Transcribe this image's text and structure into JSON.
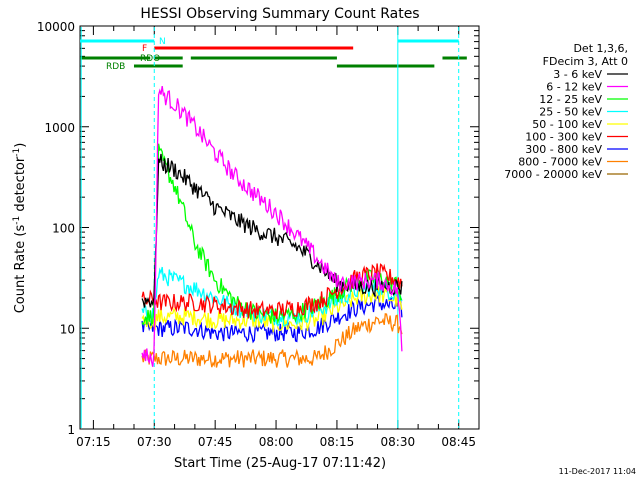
{
  "chart_data": {
    "type": "line",
    "title": "HESSI Observing Summary Count Rates",
    "xlabel": "Start Time (25-Aug-17 07:11:42)",
    "ylabel_main": "Count Rate (s",
    "ylabel_sup": "-1",
    "ylabel_mid": " detector",
    "ylabel_end": ")",
    "xlim": [
      "07:11:42",
      "08:50:00"
    ],
    "ylim": [
      1,
      10000
    ],
    "yscale": "log",
    "x_tick_labels": [
      "07:15",
      "07:30",
      "07:45",
      "08:00",
      "08:15",
      "08:30",
      "08:45"
    ],
    "y_tick_labels": [
      "1",
      "10",
      "100",
      "1000",
      "10000"
    ],
    "legend_header": [
      "Det 1,3,6,",
      "FDecim 3, Att 0"
    ],
    "legend_position": "right",
    "footer_date": "11-Dec-2017 11:04",
    "series": [
      {
        "name": "3 - 6 keV",
        "color": "#000000",
        "x": [
          "07:27",
          "07:29",
          "07:30",
          "07:31",
          "07:35",
          "07:40",
          "07:45",
          "07:50",
          "07:55",
          "08:00",
          "08:05",
          "08:10",
          "08:15",
          "08:20",
          "08:25",
          "08:30",
          "08:31"
        ],
        "values": [
          19,
          19,
          19,
          450,
          380,
          250,
          160,
          120,
          95,
          80,
          65,
          45,
          28,
          26,
          26,
          26,
          25
        ]
      },
      {
        "name": "6 - 12 keV",
        "color": "#ff00ff",
        "x": [
          "07:27",
          "07:29",
          "07:30",
          "07:31",
          "07:35",
          "07:40",
          "07:45",
          "07:50",
          "07:55",
          "08:00",
          "08:05",
          "08:10",
          "08:15",
          "08:20",
          "08:25",
          "08:30",
          "08:31"
        ],
        "values": [
          6,
          5,
          5,
          2300,
          1700,
          1000,
          550,
          320,
          210,
          140,
          85,
          50,
          28,
          29,
          30,
          24,
          6
        ]
      },
      {
        "name": "12 - 25 keV",
        "color": "#00ff00",
        "x": [
          "07:27",
          "07:29",
          "07:30",
          "07:31",
          "07:35",
          "07:40",
          "07:45",
          "07:50",
          "07:55",
          "08:00",
          "08:05",
          "08:10",
          "08:15",
          "08:20",
          "08:25",
          "08:30",
          "08:31"
        ],
        "values": [
          13,
          13,
          14,
          560,
          260,
          70,
          30,
          18,
          14,
          13,
          14,
          17,
          22,
          30,
          32,
          27,
          20
        ]
      },
      {
        "name": "25 - 50 keV",
        "color": "#00ffff",
        "x": [
          "07:27",
          "07:29",
          "07:30",
          "07:31",
          "07:35",
          "07:40",
          "07:45",
          "07:50",
          "07:55",
          "08:00",
          "08:05",
          "08:10",
          "08:15",
          "08:20",
          "08:25",
          "08:30",
          "08:31"
        ],
        "values": [
          14,
          14,
          14,
          35,
          30,
          25,
          20,
          16,
          14,
          13,
          13,
          15,
          19,
          24,
          26,
          22,
          18
        ]
      },
      {
        "name": "50 - 100 keV",
        "color": "#ffff00",
        "x": [
          "07:27",
          "07:29",
          "07:30",
          "07:31",
          "07:35",
          "07:40",
          "07:45",
          "07:50",
          "07:55",
          "08:00",
          "08:05",
          "08:10",
          "08:15",
          "08:20",
          "08:25",
          "08:30",
          "08:31"
        ],
        "values": [
          12,
          12,
          12,
          13,
          13,
          13,
          12,
          12,
          12,
          11,
          11,
          12,
          16,
          20,
          22,
          19,
          15
        ]
      },
      {
        "name": "100 - 300 keV",
        "color": "#ff0000",
        "x": [
          "07:27",
          "07:29",
          "07:30",
          "07:31",
          "07:35",
          "07:40",
          "07:45",
          "07:50",
          "07:55",
          "08:00",
          "08:05",
          "08:10",
          "08:15",
          "08:20",
          "08:25",
          "08:30",
          "08:31"
        ],
        "values": [
          19,
          19,
          20,
          18,
          18,
          18,
          17,
          16,
          15,
          15,
          16,
          18,
          24,
          32,
          36,
          30,
          28
        ]
      },
      {
        "name": "300 - 800 keV",
        "color": "#0000ff",
        "x": [
          "07:27",
          "07:29",
          "07:30",
          "07:31",
          "07:35",
          "07:40",
          "07:45",
          "07:50",
          "07:55",
          "08:00",
          "08:05",
          "08:10",
          "08:15",
          "08:20",
          "08:25",
          "08:30",
          "08:31"
        ],
        "values": [
          10,
          10,
          10,
          10,
          10,
          10,
          9,
          9,
          9,
          9,
          9,
          10,
          13,
          16,
          18,
          16,
          15
        ]
      },
      {
        "name": "800 - 7000 keV",
        "color": "#ff8000",
        "x": [
          "07:27",
          "07:29",
          "07:30",
          "07:31",
          "07:35",
          "07:40",
          "07:45",
          "07:50",
          "07:55",
          "08:00",
          "08:05",
          "08:10",
          "08:15",
          "08:20",
          "08:25",
          "08:30",
          "08:31"
        ],
        "values": [
          5,
          5,
          5,
          5,
          5,
          5,
          5,
          5,
          5,
          5,
          5,
          5,
          7,
          10,
          12,
          11,
          10
        ]
      },
      {
        "name": "7000 - 20000 keV",
        "color": "#996600",
        "x": [],
        "values": []
      }
    ],
    "status_bars": [
      {
        "label": "N",
        "color": "#00ffff",
        "segments": [
          [
            "07:11:42",
            "07:30:00"
          ],
          [
            "08:30:00",
            "08:45:00"
          ]
        ]
      },
      {
        "label": "F",
        "color": "#ff0000",
        "segments": [
          [
            "07:30:00",
            "08:19:00"
          ]
        ]
      },
      {
        "label": "RDO",
        "color": "#008000",
        "segments": [
          [
            "07:11:42",
            "07:29:00"
          ],
          [
            "07:30:00",
            "07:37:00"
          ],
          [
            "07:39:00",
            "08:15:00"
          ],
          [
            "08:41:00",
            "08:47:00"
          ]
        ]
      },
      {
        "label": "RDB",
        "color": "#008000",
        "segments": [
          [
            "07:25:00",
            "07:37:00"
          ],
          [
            "08:15:00",
            "08:39:00"
          ]
        ]
      }
    ],
    "vertical_markers": [
      {
        "x": "07:12:00",
        "style": "solid",
        "color": "#00ffff"
      },
      {
        "x": "07:30:00",
        "style": "dashed",
        "color": "#00ffff"
      },
      {
        "x": "08:30:00",
        "style": "solid",
        "color": "#00ffff"
      },
      {
        "x": "08:45:00",
        "style": "dashed",
        "color": "#00ffff"
      }
    ]
  }
}
